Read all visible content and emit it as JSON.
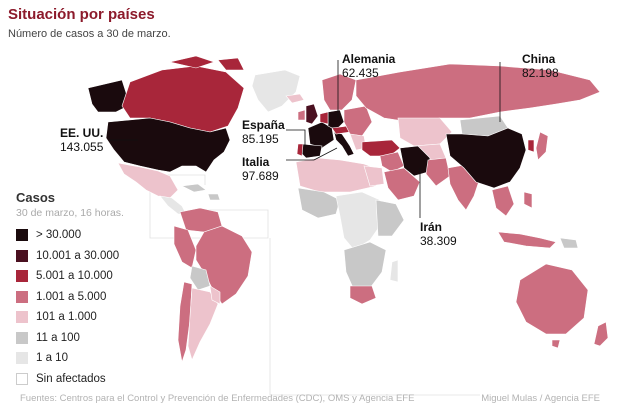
{
  "header": {
    "title": "Situación por países",
    "subtitle": "Número de casos a 30 de marzo."
  },
  "legend": {
    "title": "Casos",
    "subtitle": "30 de marzo, 16 horas.",
    "items": [
      {
        "label": "> 30.000",
        "color": "#1a0a0d"
      },
      {
        "label": "10.001 a 30.000",
        "color": "#4a1020"
      },
      {
        "label": "5.001 a 10.000",
        "color": "#a8263a"
      },
      {
        "label": "1.001 a 5.000",
        "color": "#cc6e80"
      },
      {
        "label": "101 a 1.000",
        "color": "#edc3cc"
      },
      {
        "label": "11 a 100",
        "color": "#c8c8c8"
      },
      {
        "label": "1 a 10",
        "color": "#e6e6e6"
      },
      {
        "label": "Sin afectados",
        "color": "#ffffff"
      }
    ]
  },
  "callouts": {
    "usa": {
      "name": "EE. UU.",
      "value": "143.055"
    },
    "germany": {
      "name": "Alemania",
      "value": "62.435"
    },
    "china": {
      "name": "China",
      "value": "82.198"
    },
    "spain": {
      "name": "España",
      "value": "85.195"
    },
    "italy": {
      "name": "Italia",
      "value": "97.689"
    },
    "iran": {
      "name": "Irán",
      "value": "38.309"
    }
  },
  "footer": {
    "sources": "Fuentes: Centros para el Control y Prevención de Enfermedades (CDC), OMS y Agencia EFE",
    "credit": "Miguel Mulas / Agencia EFE"
  }
}
